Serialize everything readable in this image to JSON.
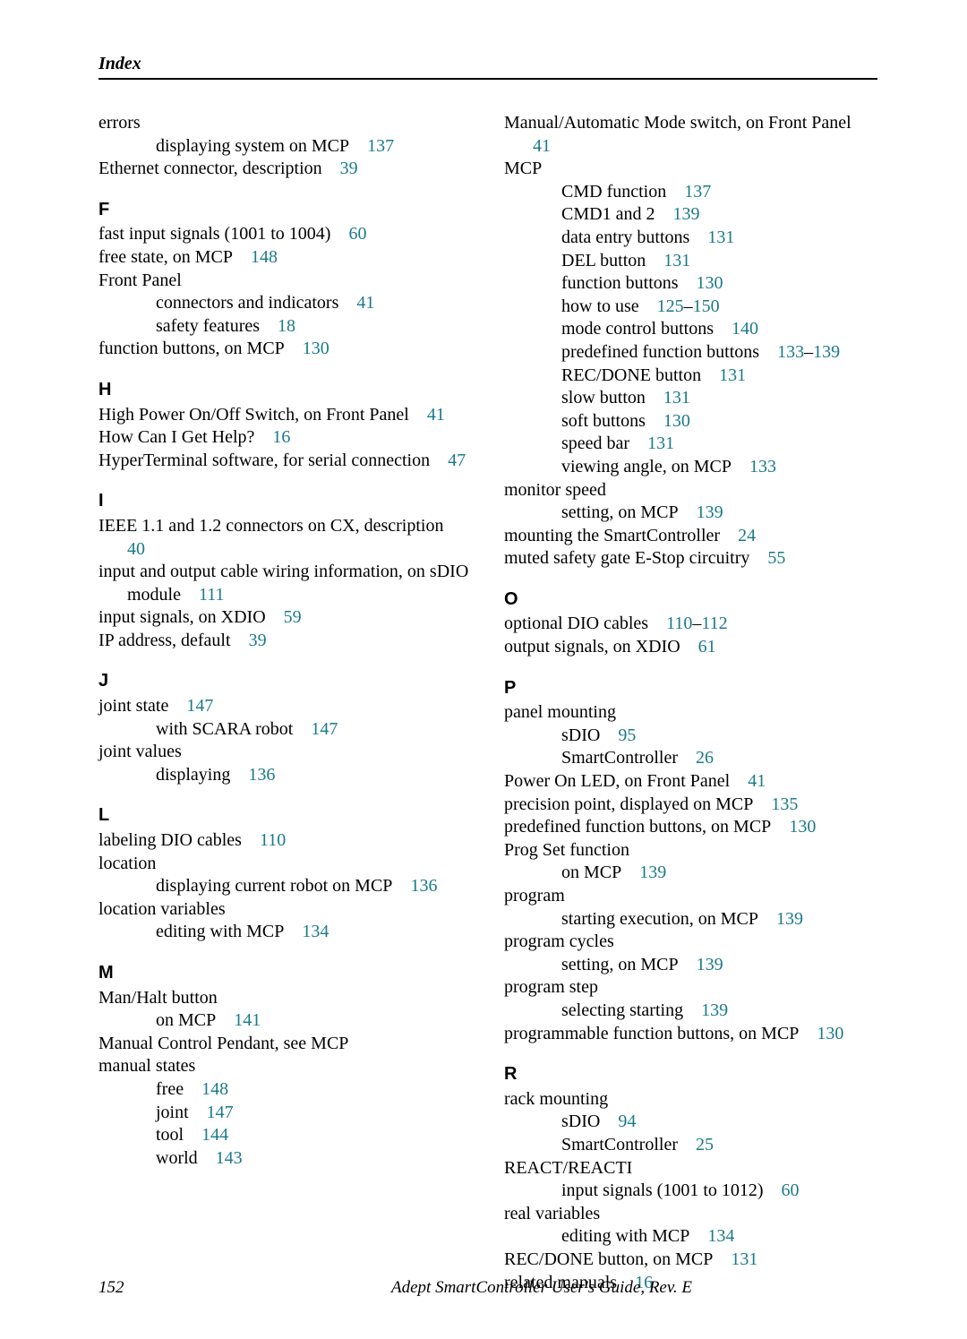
{
  "link_color": "#1a7a8a",
  "running_head": "Index",
  "footer": {
    "page_number": "152",
    "title": "Adept SmartController User's Guide, Rev. E"
  },
  "left": [
    {
      "t": "entry",
      "lvl": 0,
      "text": "errors"
    },
    {
      "t": "entry",
      "lvl": 1,
      "text": "displaying system on MCP",
      "pages": [
        "137"
      ]
    },
    {
      "t": "entry",
      "lvl": 0,
      "text": "Ethernet connector, description",
      "pages": [
        "39"
      ]
    },
    {
      "t": "letter",
      "text": "F"
    },
    {
      "t": "entry",
      "lvl": 0,
      "text": "fast input signals (1001 to 1004)",
      "pages": [
        "60"
      ]
    },
    {
      "t": "entry",
      "lvl": 0,
      "text": "free state, on MCP",
      "pages": [
        "148"
      ]
    },
    {
      "t": "entry",
      "lvl": 0,
      "text": "Front Panel"
    },
    {
      "t": "entry",
      "lvl": 1,
      "text": "connectors and indicators",
      "pages": [
        "41"
      ]
    },
    {
      "t": "entry",
      "lvl": 1,
      "text": "safety features",
      "pages": [
        "18"
      ]
    },
    {
      "t": "entry",
      "lvl": 0,
      "text": "function buttons, on MCP",
      "pages": [
        "130"
      ]
    },
    {
      "t": "letter",
      "text": "H"
    },
    {
      "t": "entry",
      "lvl": 0,
      "text": "High Power On/Off Switch, on Front Panel",
      "pages": [
        "41"
      ]
    },
    {
      "t": "entry",
      "lvl": 0,
      "text": "How Can I Get Help?",
      "pages": [
        "16"
      ]
    },
    {
      "t": "entry",
      "lvl": 0,
      "text": "HyperTerminal software, for serial connection",
      "pages": [
        "47"
      ]
    },
    {
      "t": "letter",
      "text": "I"
    },
    {
      "t": "entry",
      "lvl": 0,
      "text": "IEEE 1.1 and 1.2 connectors on CX, description",
      "pages": [
        "40"
      ]
    },
    {
      "t": "entry",
      "lvl": 0,
      "text": "input and output cable wiring information, on sDIO module",
      "pages": [
        "111"
      ]
    },
    {
      "t": "entry",
      "lvl": 0,
      "text": "input signals, on XDIO",
      "pages": [
        "59"
      ]
    },
    {
      "t": "entry",
      "lvl": 0,
      "text": "IP address, default",
      "pages": [
        "39"
      ]
    },
    {
      "t": "letter",
      "text": "J"
    },
    {
      "t": "entry",
      "lvl": 0,
      "text": "joint state",
      "pages": [
        "147"
      ]
    },
    {
      "t": "entry",
      "lvl": 1,
      "text": "with SCARA robot",
      "pages": [
        "147"
      ]
    },
    {
      "t": "entry",
      "lvl": 0,
      "text": "joint values"
    },
    {
      "t": "entry",
      "lvl": 1,
      "text": "displaying",
      "pages": [
        "136"
      ]
    },
    {
      "t": "letter",
      "text": "L"
    },
    {
      "t": "entry",
      "lvl": 0,
      "text": "labeling DIO cables",
      "pages": [
        "110"
      ]
    },
    {
      "t": "entry",
      "lvl": 0,
      "text": "location"
    },
    {
      "t": "entry",
      "lvl": 1,
      "text": "displaying current robot on MCP",
      "pages": [
        "136"
      ]
    },
    {
      "t": "entry",
      "lvl": 0,
      "text": "location variables"
    },
    {
      "t": "entry",
      "lvl": 1,
      "text": "editing with MCP",
      "pages": [
        "134"
      ]
    },
    {
      "t": "letter",
      "text": "M"
    },
    {
      "t": "entry",
      "lvl": 0,
      "text": "Man/Halt button"
    },
    {
      "t": "entry",
      "lvl": 1,
      "text": "on MCP",
      "pages": [
        "141"
      ]
    },
    {
      "t": "entry",
      "lvl": 0,
      "text": "Manual Control Pendant, see MCP"
    },
    {
      "t": "entry",
      "lvl": 0,
      "text": "manual states"
    },
    {
      "t": "entry",
      "lvl": 1,
      "text": "free",
      "pages": [
        "148"
      ]
    },
    {
      "t": "entry",
      "lvl": 1,
      "text": "joint",
      "pages": [
        "147"
      ]
    },
    {
      "t": "entry",
      "lvl": 1,
      "text": "tool",
      "pages": [
        "144"
      ]
    },
    {
      "t": "entry",
      "lvl": 1,
      "text": "world",
      "pages": [
        "143"
      ]
    }
  ],
  "right": [
    {
      "t": "entry",
      "lvl": 0,
      "text": "Manual/Automatic Mode switch, on Front Panel",
      "pages": [
        "41"
      ]
    },
    {
      "t": "entry",
      "lvl": 0,
      "text": "MCP"
    },
    {
      "t": "entry",
      "lvl": 1,
      "text": "CMD function",
      "pages": [
        "137"
      ]
    },
    {
      "t": "entry",
      "lvl": 1,
      "text": "CMD1 and 2",
      "pages": [
        "139"
      ]
    },
    {
      "t": "entry",
      "lvl": 1,
      "text": "data entry buttons",
      "pages": [
        "131"
      ]
    },
    {
      "t": "entry",
      "lvl": 1,
      "text": "DEL button",
      "pages": [
        "131"
      ]
    },
    {
      "t": "entry",
      "lvl": 1,
      "text": "function buttons",
      "pages": [
        "130"
      ]
    },
    {
      "t": "entry",
      "lvl": 1,
      "text": "how to use",
      "pages": [
        "125",
        "150"
      ],
      "range": true
    },
    {
      "t": "entry",
      "lvl": 1,
      "text": "mode control buttons",
      "pages": [
        "140"
      ]
    },
    {
      "t": "entry",
      "lvl": 1,
      "text": "predefined function buttons",
      "pages": [
        "133",
        "139"
      ],
      "range": true
    },
    {
      "t": "entry",
      "lvl": 1,
      "text": "REC/DONE button",
      "pages": [
        "131"
      ]
    },
    {
      "t": "entry",
      "lvl": 1,
      "text": "slow button",
      "pages": [
        "131"
      ]
    },
    {
      "t": "entry",
      "lvl": 1,
      "text": "soft buttons",
      "pages": [
        "130"
      ]
    },
    {
      "t": "entry",
      "lvl": 1,
      "text": "speed bar",
      "pages": [
        "131"
      ]
    },
    {
      "t": "entry",
      "lvl": 1,
      "text": "viewing angle, on MCP",
      "pages": [
        "133"
      ]
    },
    {
      "t": "entry",
      "lvl": 0,
      "text": "monitor speed"
    },
    {
      "t": "entry",
      "lvl": 1,
      "text": "setting, on MCP",
      "pages": [
        "139"
      ]
    },
    {
      "t": "entry",
      "lvl": 0,
      "text": "mounting the SmartController",
      "pages": [
        "24"
      ]
    },
    {
      "t": "entry",
      "lvl": 0,
      "text": "muted safety gate E-Stop circuitry",
      "pages": [
        "55"
      ]
    },
    {
      "t": "letter",
      "text": "O"
    },
    {
      "t": "entry",
      "lvl": 0,
      "text": "optional DIO cables",
      "pages": [
        "110",
        "112"
      ],
      "range": true
    },
    {
      "t": "entry",
      "lvl": 0,
      "text": "output signals, on XDIO",
      "pages": [
        "61"
      ]
    },
    {
      "t": "letter",
      "text": "P"
    },
    {
      "t": "entry",
      "lvl": 0,
      "text": "panel mounting"
    },
    {
      "t": "entry",
      "lvl": 1,
      "text": "sDIO",
      "pages": [
        "95"
      ]
    },
    {
      "t": "entry",
      "lvl": 1,
      "text": "SmartController",
      "pages": [
        "26"
      ]
    },
    {
      "t": "entry",
      "lvl": 0,
      "text": "Power On LED, on Front Panel",
      "pages": [
        "41"
      ]
    },
    {
      "t": "entry",
      "lvl": 0,
      "text": "precision point, displayed on MCP",
      "pages": [
        "135"
      ]
    },
    {
      "t": "entry",
      "lvl": 0,
      "text": "predefined function buttons, on MCP",
      "pages": [
        "130"
      ]
    },
    {
      "t": "entry",
      "lvl": 0,
      "text": "Prog Set function"
    },
    {
      "t": "entry",
      "lvl": 1,
      "text": "on MCP",
      "pages": [
        "139"
      ]
    },
    {
      "t": "entry",
      "lvl": 0,
      "text": "program"
    },
    {
      "t": "entry",
      "lvl": 1,
      "text": "starting execution, on MCP",
      "pages": [
        "139"
      ]
    },
    {
      "t": "entry",
      "lvl": 0,
      "text": "program cycles"
    },
    {
      "t": "entry",
      "lvl": 1,
      "text": "setting, on MCP",
      "pages": [
        "139"
      ]
    },
    {
      "t": "entry",
      "lvl": 0,
      "text": "program step"
    },
    {
      "t": "entry",
      "lvl": 1,
      "text": "selecting starting",
      "pages": [
        "139"
      ]
    },
    {
      "t": "entry",
      "lvl": 0,
      "text": "programmable function buttons, on MCP",
      "pages": [
        "130"
      ]
    },
    {
      "t": "letter",
      "text": "R"
    },
    {
      "t": "entry",
      "lvl": 0,
      "text": "rack mounting"
    },
    {
      "t": "entry",
      "lvl": 1,
      "text": "sDIO",
      "pages": [
        "94"
      ]
    },
    {
      "t": "entry",
      "lvl": 1,
      "text": "SmartController",
      "pages": [
        "25"
      ]
    },
    {
      "t": "entry",
      "lvl": 0,
      "text": "REACT/REACTI"
    },
    {
      "t": "entry",
      "lvl": 1,
      "text": "input signals (1001 to 1012)",
      "pages": [
        "60"
      ]
    },
    {
      "t": "entry",
      "lvl": 0,
      "text": "real variables"
    },
    {
      "t": "entry",
      "lvl": 1,
      "text": "editing with MCP",
      "pages": [
        "134"
      ]
    },
    {
      "t": "entry",
      "lvl": 0,
      "text": "REC/DONE button, on MCP",
      "pages": [
        "131"
      ]
    },
    {
      "t": "entry",
      "lvl": 0,
      "text": "related manuals",
      "pages": [
        "16"
      ]
    }
  ]
}
